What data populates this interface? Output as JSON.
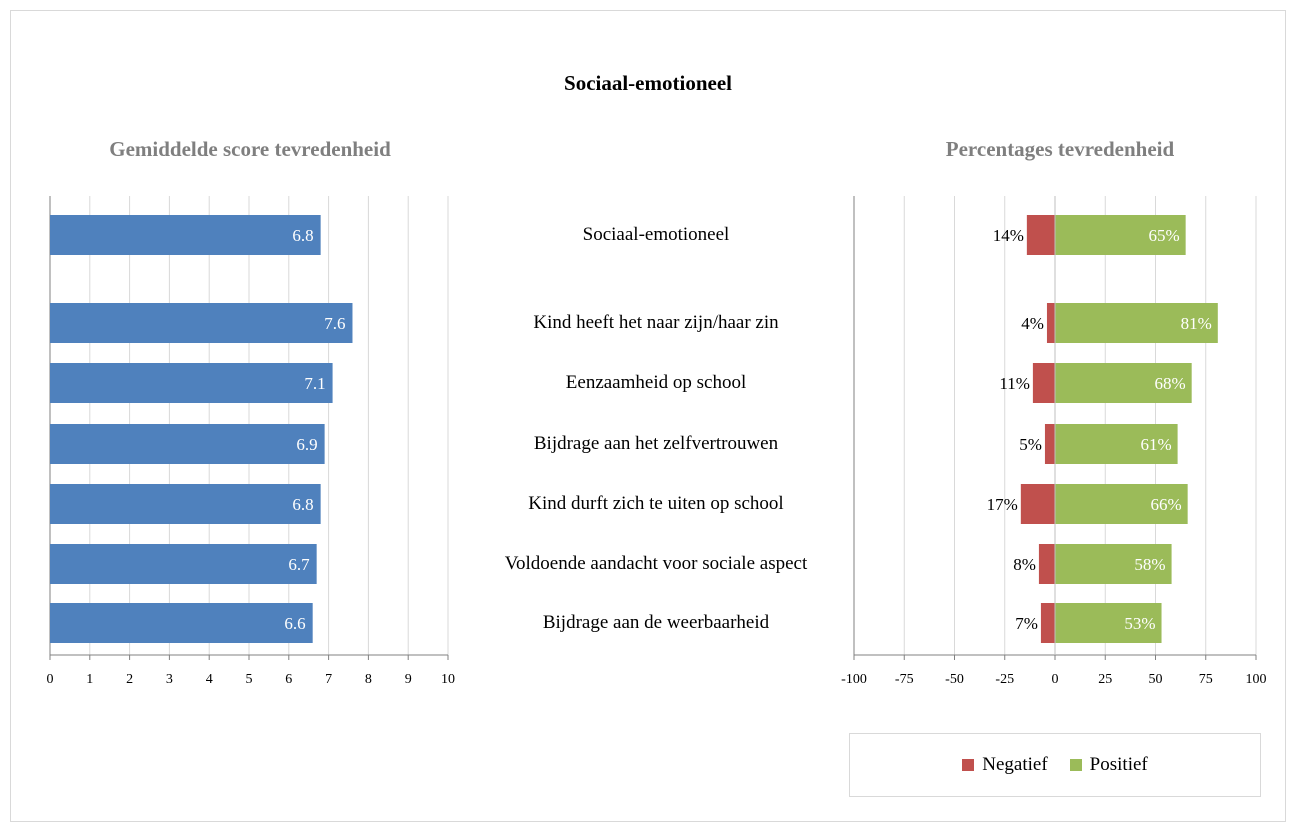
{
  "page": {
    "title": "Sociaal-emotioneel"
  },
  "chart_data": [
    {
      "type": "bar",
      "orientation": "horizontal",
      "title": "Gemiddelde score tevredenheid",
      "categories": [
        "Sociaal-emotioneel",
        "Kind heeft het naar zijn/haar zin",
        "Eenzaamheid op school",
        "Bijdrage aan het zelfvertrouwen",
        "Kind durft zich te uiten op school",
        "Voldoende aandacht voor sociale aspect",
        "Bijdrage aan de weerbaarheid"
      ],
      "values": [
        6.8,
        7.6,
        7.1,
        6.9,
        6.8,
        6.7,
        6.6
      ],
      "data_labels": [
        "6.8",
        "7.6",
        "7.1",
        "6.9",
        "6.8",
        "6.7",
        "6.6"
      ],
      "xlim": [
        0,
        10
      ],
      "x_ticks": [
        "0",
        "1",
        "2",
        "3",
        "4",
        "5",
        "6",
        "7",
        "8",
        "9",
        "10"
      ],
      "grid": true,
      "color": "#4f81bd"
    },
    {
      "type": "bar",
      "orientation": "horizontal",
      "stacked": "diverging",
      "title": "Percentages tevredenheid",
      "categories": [
        "Sociaal-emotioneel",
        "Kind heeft het naar zijn/haar zin",
        "Eenzaamheid op school",
        "Bijdrage aan het zelfvertrouwen",
        "Kind durft zich te uiten op school",
        "Voldoende aandacht voor sociale aspect",
        "Bijdrage aan de weerbaarheid"
      ],
      "series": [
        {
          "name": "Negatief",
          "values": [
            -14,
            -4,
            -11,
            -5,
            -17,
            -8,
            -7
          ],
          "labels": [
            "14%",
            "4%",
            "11%",
            "5%",
            "17%",
            "8%",
            "7%"
          ],
          "color": "#c0504d"
        },
        {
          "name": "Positief",
          "values": [
            65,
            81,
            68,
            61,
            66,
            58,
            53
          ],
          "labels": [
            "65%",
            "81%",
            "68%",
            "61%",
            "66%",
            "58%",
            "53%"
          ],
          "color": "#9bbb59"
        }
      ],
      "xlim": [
        -100,
        100
      ],
      "x_ticks": [
        "-100",
        "-75",
        "-50",
        "-25",
        "0",
        "25",
        "50",
        "75",
        "100"
      ],
      "grid": true,
      "legend": "bottom"
    }
  ]
}
